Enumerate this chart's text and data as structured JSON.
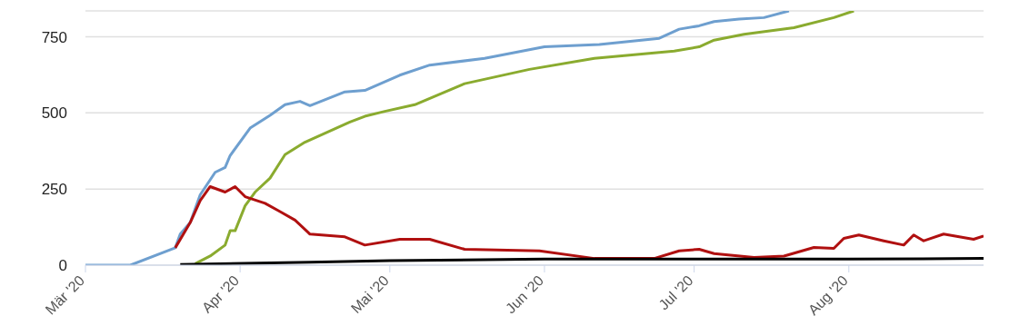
{
  "chart_data": {
    "type": "line",
    "xlim": [
      "2020-03-01",
      "2020-08-28"
    ],
    "ylim": [
      0,
      835
    ],
    "yticks": [
      0,
      250,
      500,
      750
    ],
    "xticks": [
      {
        "value": "2020-03-01",
        "label": "Mär '20"
      },
      {
        "value": "2020-04-01",
        "label": "Apr '20"
      },
      {
        "value": "2020-05-01",
        "label": "Mai '20"
      },
      {
        "value": "2020-06-01",
        "label": "Jun '20"
      },
      {
        "value": "2020-07-01",
        "label": "Jul '20"
      },
      {
        "value": "2020-08-01",
        "label": "Aug '20"
      }
    ],
    "grid": "y",
    "marker": "none",
    "line_style": "solid",
    "series": [
      {
        "color": "#6e9fcf",
        "x": [
          "2020-03-01",
          "2020-03-10",
          "2020-03-19",
          "2020-03-20",
          "2020-03-22",
          "2020-03-24",
          "2020-03-27",
          "2020-03-29",
          "2020-03-30",
          "2020-04-03",
          "2020-04-07",
          "2020-04-10",
          "2020-04-13",
          "2020-04-15",
          "2020-04-22",
          "2020-04-26",
          "2020-05-03",
          "2020-05-09",
          "2020-05-20",
          "2020-06-01",
          "2020-06-12",
          "2020-06-24",
          "2020-06-28",
          "2020-07-02",
          "2020-07-05",
          "2020-07-10",
          "2020-07-15",
          "2020-07-20"
        ],
        "values": [
          0,
          0,
          57,
          102,
          140,
          231,
          305,
          321,
          360,
          450,
          492,
          527,
          538,
          524,
          569,
          574,
          624,
          657,
          679,
          717,
          725,
          745,
          775,
          786,
          800,
          808,
          813,
          835
        ]
      },
      {
        "color": "#8aab2f",
        "x": [
          "2020-03-23",
          "2020-03-26",
          "2020-03-29",
          "2020-03-30",
          "2020-03-31",
          "2020-04-02",
          "2020-04-04",
          "2020-04-07",
          "2020-04-10",
          "2020-04-14",
          "2020-04-23",
          "2020-04-26",
          "2020-04-30",
          "2020-05-06",
          "2020-05-16",
          "2020-05-29",
          "2020-06-11",
          "2020-06-27",
          "2020-07-02",
          "2020-07-05",
          "2020-07-11",
          "2020-07-21",
          "2020-07-29",
          "2020-08-02"
        ],
        "values": [
          5,
          30,
          66,
          113,
          113,
          195,
          240,
          286,
          363,
          404,
          470,
          489,
          505,
          527,
          596,
          643,
          679,
          703,
          717,
          739,
          758,
          780,
          813,
          835
        ]
      },
      {
        "color": "#b01010",
        "x": [
          "2020-03-19",
          "2020-03-22",
          "2020-03-24",
          "2020-03-26",
          "2020-03-29",
          "2020-03-31",
          "2020-04-02",
          "2020-04-06",
          "2020-04-09",
          "2020-04-12",
          "2020-04-15",
          "2020-04-22",
          "2020-04-26",
          "2020-05-03",
          "2020-05-09",
          "2020-05-16",
          "2020-05-31",
          "2020-06-11",
          "2020-06-23",
          "2020-06-28",
          "2020-07-02",
          "2020-07-05",
          "2020-07-13",
          "2020-07-19",
          "2020-07-25",
          "2020-07-29",
          "2020-07-31",
          "2020-08-03",
          "2020-08-08",
          "2020-08-12",
          "2020-08-14",
          "2020-08-16",
          "2020-08-20",
          "2020-08-26",
          "2020-08-28"
        ],
        "values": [
          57,
          140,
          212,
          258,
          240,
          258,
          225,
          203,
          176,
          148,
          102,
          93,
          66,
          85,
          85,
          52,
          47,
          22,
          22,
          47,
          52,
          38,
          25,
          30,
          58,
          55,
          88,
          99,
          80,
          66,
          99,
          80,
          102,
          85,
          96
        ]
      },
      {
        "color": "#000000",
        "x": [
          "2020-03-20",
          "2020-04-15",
          "2020-05-01",
          "2020-06-01",
          "2020-08-01",
          "2020-08-28"
        ],
        "values": [
          2,
          10,
          15,
          20,
          20,
          22
        ]
      }
    ]
  }
}
